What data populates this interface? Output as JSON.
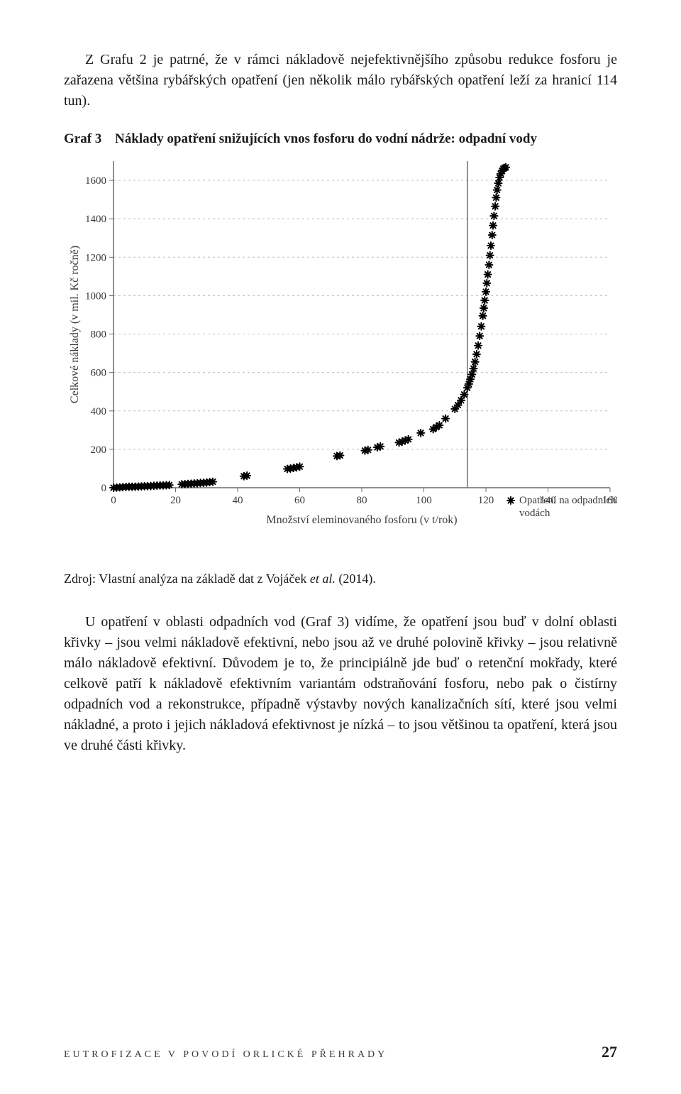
{
  "intro_paragraph": "Z Grafu 2 je patrné, že v rámci nákladově nejefektivnějšího způsobu redukce fosforu je zařazena většina rybářských opatření (jen několik málo rybářských opatření leží za hranicí 114 tun).",
  "figure": {
    "label_prefix": "Graf 3",
    "title": "Náklady opatření snižujících vnos fosforu do vodní nádrže: odpadní vody"
  },
  "chart": {
    "type": "scatter",
    "background_color": "#ffffff",
    "grid_color": "#bdbdbd",
    "grid_dash": "3 4",
    "axis_color": "#6b6b6b",
    "tick_color": "#6b6b6b",
    "label_color": "#3a3a3a",
    "marker_color": "#000000",
    "vline_color": "#6b6b6b",
    "xlabel": "Množství eleminovaného fosforu (v t/rok)",
    "ylabel": "Celkové náklady (v mil. Kč ročně)",
    "xlim": [
      0,
      160
    ],
    "ylim": [
      0,
      1700
    ],
    "xtick_step": 20,
    "xticks": [
      0,
      20,
      40,
      60,
      80,
      100,
      120,
      140,
      160
    ],
    "yticks": [
      0,
      200,
      400,
      600,
      800,
      1000,
      1200,
      1400,
      1600
    ],
    "vline_x": 114,
    "marker_halfsize": 5,
    "marker_stroke_width": 2,
    "axis_fontsize": 15,
    "label_fontsize": 16,
    "legend": {
      "marker_label": "Opatření na odpadních vodách"
    },
    "points": [
      [
        0,
        0
      ],
      [
        1,
        1
      ],
      [
        2,
        2
      ],
      [
        3,
        3
      ],
      [
        4,
        4
      ],
      [
        5,
        5
      ],
      [
        6,
        5
      ],
      [
        7,
        5
      ],
      [
        8,
        6
      ],
      [
        9,
        7
      ],
      [
        10,
        8
      ],
      [
        11,
        8
      ],
      [
        12,
        9
      ],
      [
        13,
        10
      ],
      [
        14,
        11
      ],
      [
        15,
        12
      ],
      [
        16,
        12
      ],
      [
        17,
        13
      ],
      [
        18,
        14
      ],
      [
        22,
        18
      ],
      [
        23,
        19
      ],
      [
        24,
        20
      ],
      [
        25,
        21
      ],
      [
        26,
        22
      ],
      [
        27,
        23
      ],
      [
        28,
        25
      ],
      [
        29,
        26
      ],
      [
        30,
        27
      ],
      [
        31,
        29
      ],
      [
        32,
        31
      ],
      [
        42,
        60
      ],
      [
        43,
        63
      ],
      [
        56,
        98
      ],
      [
        57,
        100
      ],
      [
        58,
        103
      ],
      [
        59,
        106
      ],
      [
        60,
        110
      ],
      [
        72,
        165
      ],
      [
        73,
        168
      ],
      [
        81,
        193
      ],
      [
        82,
        197
      ],
      [
        85,
        210
      ],
      [
        86,
        215
      ],
      [
        92,
        235
      ],
      [
        93,
        240
      ],
      [
        94,
        246
      ],
      [
        95,
        252
      ],
      [
        99,
        285
      ],
      [
        103,
        305
      ],
      [
        104,
        315
      ],
      [
        105,
        325
      ],
      [
        107,
        360
      ],
      [
        110,
        410
      ],
      [
        111,
        430
      ],
      [
        112,
        455
      ],
      [
        113,
        485
      ],
      [
        114,
        520
      ],
      [
        114.5,
        540
      ],
      [
        115,
        565
      ],
      [
        115.5,
        590
      ],
      [
        116,
        620
      ],
      [
        116.5,
        655
      ],
      [
        117,
        695
      ],
      [
        117.5,
        740
      ],
      [
        118,
        790
      ],
      [
        118.5,
        840
      ],
      [
        119,
        895
      ],
      [
        119.3,
        935
      ],
      [
        119.6,
        975
      ],
      [
        120,
        1020
      ],
      [
        120.3,
        1065
      ],
      [
        120.6,
        1110
      ],
      [
        121,
        1160
      ],
      [
        121.3,
        1210
      ],
      [
        121.6,
        1260
      ],
      [
        122,
        1315
      ],
      [
        122.3,
        1365
      ],
      [
        122.6,
        1415
      ],
      [
        123,
        1465
      ],
      [
        123.3,
        1510
      ],
      [
        123.6,
        1550
      ],
      [
        124,
        1585
      ],
      [
        124.4,
        1615
      ],
      [
        124.8,
        1635
      ],
      [
        125.2,
        1650
      ],
      [
        125.6,
        1660
      ],
      [
        126,
        1665
      ],
      [
        126.4,
        1668
      ]
    ]
  },
  "source": {
    "prefix": "Zdroj: Vlastní analýza na základě dat z Vojáček ",
    "etal": "et al.",
    "suffix": " (2014)."
  },
  "body_paragraph": "U opatření v oblasti odpadních vod (Graf 3) vidíme, že opatření jsou buď v dolní oblasti křivky – jsou velmi nákladově efektivní, nebo jsou až ve druhé polovině křivky – jsou relativně málo nákladově efektivní. Důvodem je to, že principiálně jde buď o retenční mokřady, které celkově patří k nákladově efektivním variantám odstraňování fosforu, nebo pak o čistírny odpadních vod a rekonstrukce, případně výstavby nových kanalizačních sítí, které jsou velmi nákladné, a proto i jejich nákladová efektivnost je nízká – to jsou většinou ta opatření, která jsou ve druhé části křivky.",
  "footer": {
    "text": "Eutrofizace v povodí Orlické přehrady",
    "page": "27"
  }
}
